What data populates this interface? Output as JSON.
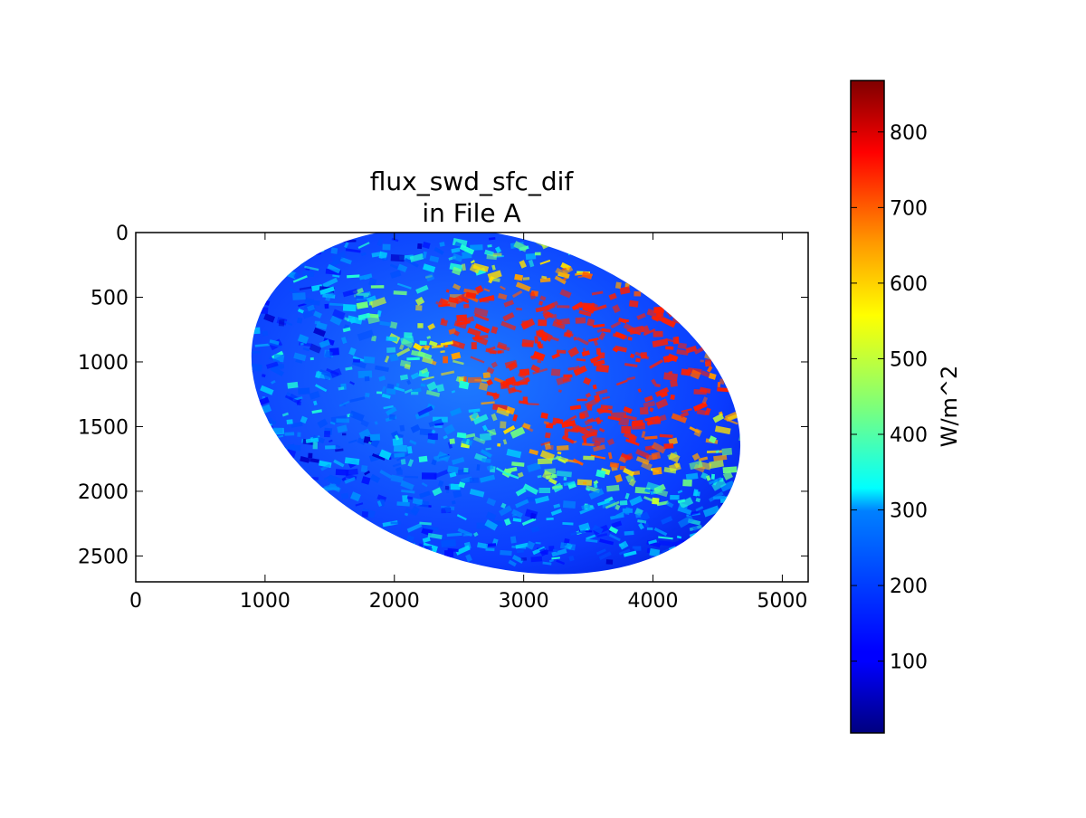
{
  "chart_data": {
    "type": "heatmap",
    "title": "flux_swd_sfc_dif\nin File A",
    "title_lines": [
      "flux_swd_sfc_dif",
      "in File A"
    ],
    "xlabel": "",
    "ylabel": "",
    "xlim": [
      0,
      5200
    ],
    "ylim": [
      2700,
      0
    ],
    "y_axis_inverted": true,
    "x_ticks": [
      0,
      1000,
      2000,
      3000,
      4000,
      5000
    ],
    "y_ticks": [
      0,
      500,
      1000,
      1500,
      2000,
      2500
    ],
    "x_tick_labels": [
      "0",
      "1000",
      "2000",
      "3000",
      "4000",
      "5000"
    ],
    "y_tick_labels": [
      "0",
      "500",
      "1000",
      "1500",
      "2000",
      "2500"
    ],
    "grid": false,
    "colormap": "jet",
    "colorbar": {
      "label": "W/m^2",
      "range": [
        5,
        868
      ],
      "ticks": [
        100,
        200,
        300,
        400,
        500,
        600,
        700,
        800
      ],
      "tick_labels": [
        "100",
        "200",
        "300",
        "400",
        "500",
        "600",
        "700",
        "800"
      ],
      "placement": "right"
    },
    "image": {
      "description_shape": "elliptical earth disk",
      "disk_x_range": [
        840,
        4730
      ],
      "disk_y_range": [
        40,
        2560
      ]
    }
  }
}
